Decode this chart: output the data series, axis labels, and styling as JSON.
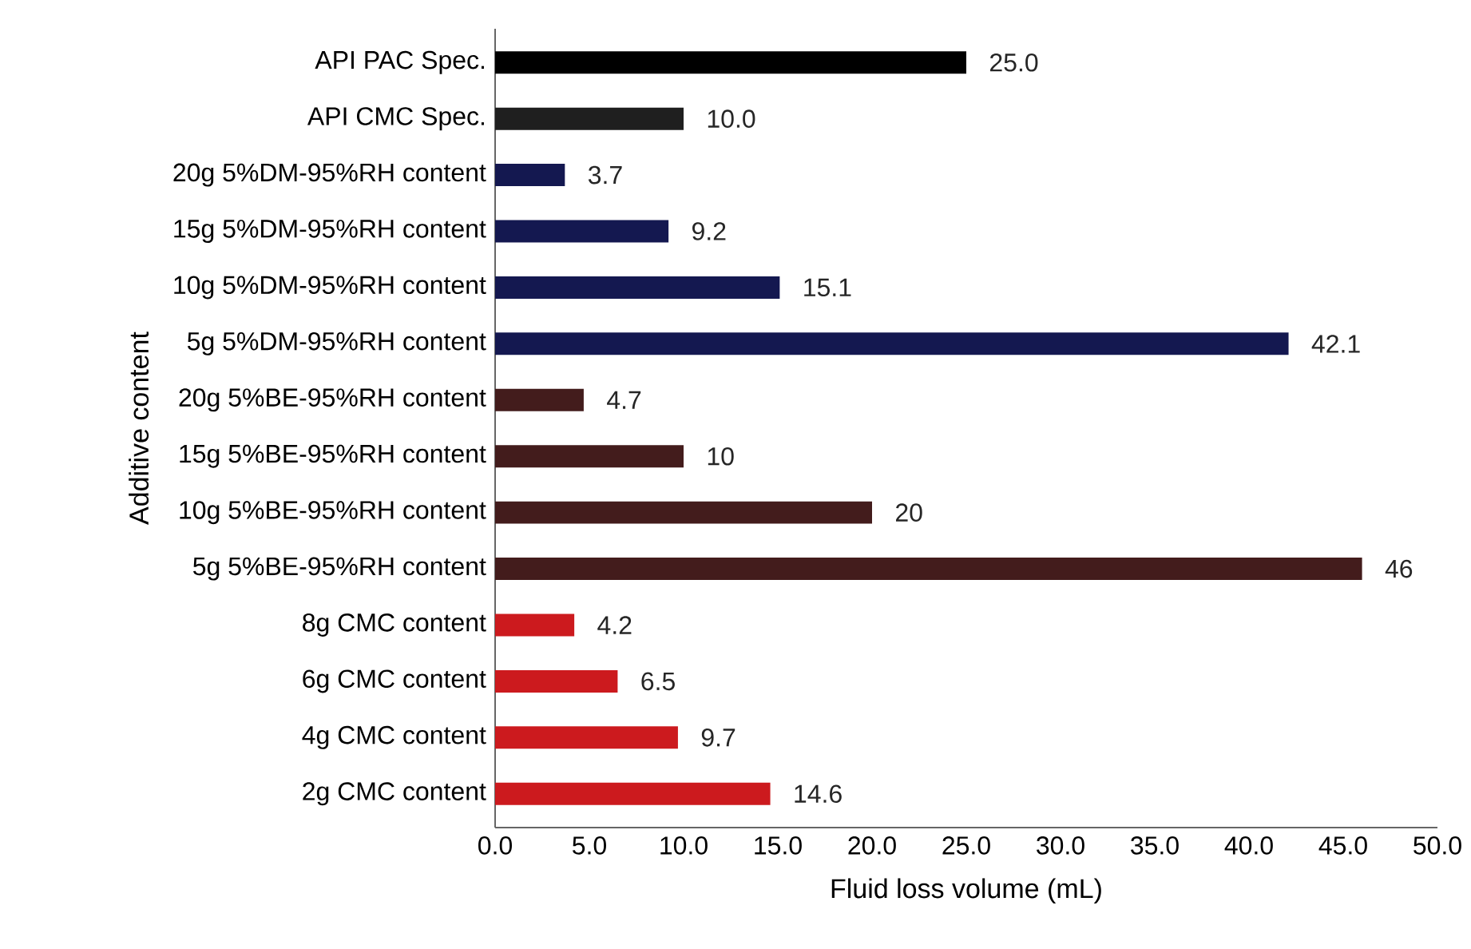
{
  "chart_data": {
    "type": "bar",
    "orientation": "horizontal",
    "xlabel": "Fluid loss volume (mL)",
    "ylabel": "Additive content",
    "categories": [
      "API PAC Spec.",
      "API CMC Spec.",
      "20g 5%DM-95%RH content",
      "15g 5%DM-95%RH content",
      "10g 5%DM-95%RH content",
      "5g 5%DM-95%RH content",
      "20g 5%BE-95%RH content",
      "15g 5%BE-95%RH content",
      "10g 5%BE-95%RH content",
      "5g 5%BE-95%RH content",
      "8g CMC content",
      "6g CMC content",
      "4g CMC content",
      "2g CMC content"
    ],
    "values": [
      25.0,
      10.0,
      3.7,
      9.2,
      15.1,
      42.1,
      4.7,
      10,
      20,
      46,
      4.2,
      6.5,
      9.7,
      14.6
    ],
    "value_labels": [
      "25.0",
      "10.0",
      "3.7",
      "9.2",
      "15.1",
      "42.1",
      "4.7",
      "10",
      "20",
      "46",
      "4.2",
      "6.5",
      "9.7",
      "14.6"
    ],
    "colors": [
      "#000000",
      "#1f1f1f",
      "#141850",
      "#141850",
      "#141850",
      "#141850",
      "#431c1c",
      "#431c1c",
      "#431c1c",
      "#431c1c",
      "#cc1a1e",
      "#cc1a1e",
      "#cc1a1e",
      "#cc1a1e"
    ],
    "xlim": [
      0,
      50
    ],
    "xticks": [
      {
        "value": 0,
        "label": "0.0"
      },
      {
        "value": 5,
        "label": "5.0"
      },
      {
        "value": 10,
        "label": "10.0"
      },
      {
        "value": 15,
        "label": "15.0"
      },
      {
        "value": 20,
        "label": "20.0"
      },
      {
        "value": 25,
        "label": "25.0"
      },
      {
        "value": 30,
        "label": "30.0"
      },
      {
        "value": 35,
        "label": "35.0"
      },
      {
        "value": 40,
        "label": "40.0"
      },
      {
        "value": 45,
        "label": "45.0"
      },
      {
        "value": 50,
        "label": "50.0"
      }
    ]
  }
}
